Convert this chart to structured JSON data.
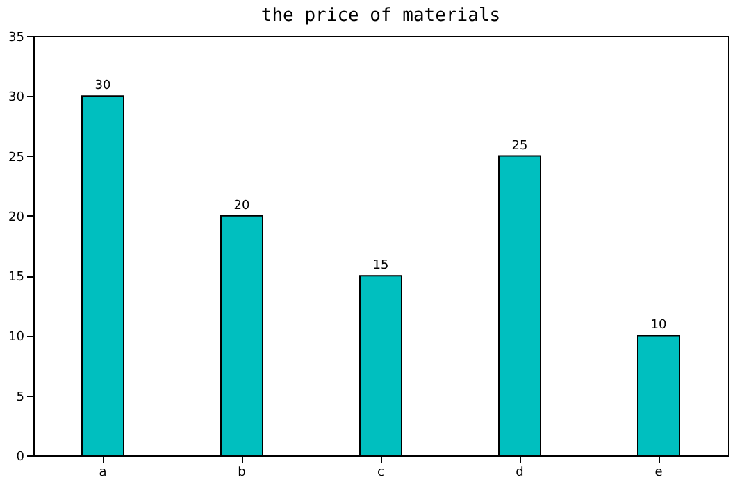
{
  "chart_data": {
    "type": "bar",
    "title": "the price of materials",
    "categories": [
      "a",
      "b",
      "c",
      "d",
      "e"
    ],
    "values": [
      30,
      20,
      15,
      25,
      10
    ],
    "color": "#00bfbf",
    "ylim": [
      0,
      35
    ],
    "yticks": [
      0,
      5,
      10,
      15,
      20,
      25,
      30,
      35
    ],
    "grid": false,
    "data_labels": true
  }
}
